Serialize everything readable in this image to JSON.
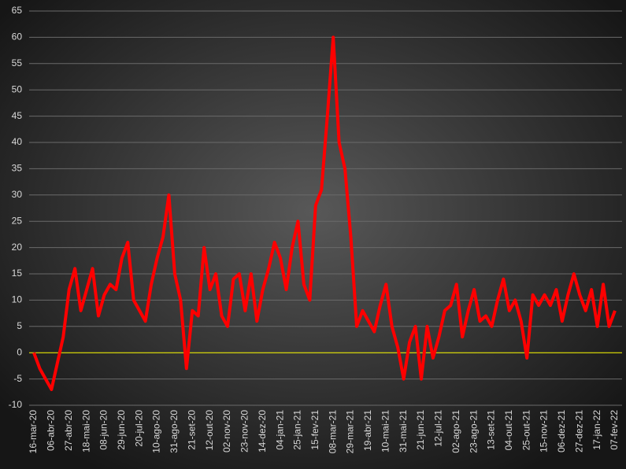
{
  "chart_data": {
    "type": "line",
    "categories": [
      "16-mar-20",
      null,
      null,
      "06-abr-20",
      null,
      null,
      "27-abr-20",
      null,
      null,
      "18-mai-20",
      null,
      null,
      "08-jun-20",
      null,
      null,
      "29-jun-20",
      null,
      null,
      "20-jul-20",
      null,
      null,
      "10-ago-20",
      null,
      null,
      "31-ago-20",
      null,
      null,
      "21-set-20",
      null,
      null,
      "12-out-20",
      null,
      null,
      "02-nov-20",
      null,
      null,
      "23-nov-20",
      null,
      null,
      "14-dez-20",
      null,
      null,
      "04-jan-21",
      null,
      null,
      "25-jan-21",
      null,
      null,
      "15-fev-21",
      null,
      null,
      "08-mar-21",
      null,
      null,
      "29-mar-21",
      null,
      null,
      "19-abr-21",
      null,
      null,
      "10-mai-21",
      null,
      null,
      "31-mai-21",
      null,
      null,
      "21-jun-21",
      null,
      null,
      "12-jul-21",
      null,
      null,
      "02-ago-21",
      null,
      null,
      "23-ago-21",
      null,
      null,
      "13-set-21",
      null,
      null,
      "04-out-21",
      null,
      null,
      "25-out-21",
      null,
      null,
      "15-nov-21",
      null,
      null,
      "06-dez-21",
      null,
      null,
      "27-dez-21",
      null,
      null,
      "17-jan-22",
      null,
      null,
      "07-fev-22"
    ],
    "series": [
      {
        "color": "#ff0000",
        "values": [
          0,
          -3,
          -5,
          -7,
          -2,
          3,
          12,
          16,
          8,
          12,
          16,
          7,
          11,
          13,
          12,
          18,
          21,
          10,
          8,
          6,
          13,
          18,
          22,
          30,
          15,
          10,
          -3,
          8,
          7,
          20,
          12,
          15,
          7,
          5,
          14,
          15,
          8,
          15,
          6,
          12,
          16,
          21,
          18,
          12,
          20,
          25,
          13,
          10,
          28,
          31,
          45,
          60,
          40,
          35,
          22,
          5,
          8,
          6,
          4,
          9,
          13,
          5,
          1,
          -5,
          2,
          5,
          -5,
          5,
          -1,
          3,
          8,
          9,
          13,
          3,
          8,
          12,
          6,
          7,
          5,
          10,
          14,
          8,
          10,
          6,
          -1,
          11,
          9,
          11,
          9,
          12,
          6,
          11,
          15,
          11,
          8,
          12,
          5,
          13,
          5,
          8
        ]
      }
    ],
    "ylim": [
      -10,
      65
    ],
    "yticks": [
      -10,
      -5,
      0,
      5,
      10,
      15,
      20,
      25,
      30,
      35,
      40,
      45,
      50,
      55,
      60,
      65
    ],
    "grid": true,
    "grid_color": "#6a6a6a",
    "zero_line_color": "#ffff00"
  }
}
